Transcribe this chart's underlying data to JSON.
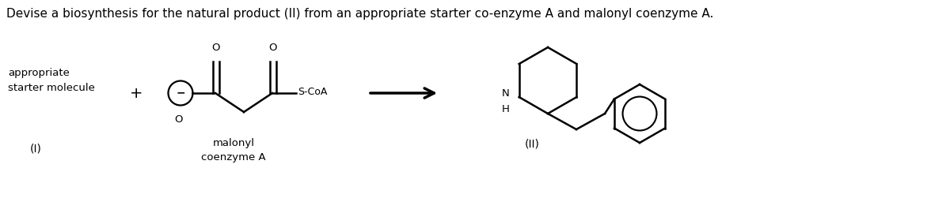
{
  "title_text": "Devise a biosynthesis for the natural product (II) from an appropriate starter co-enzyme A and malonyl coenzyme A.",
  "title_fontsize": 11,
  "bg_color": "#ffffff",
  "label_I": "(I)",
  "label_II": "(II)",
  "label_appropriate": "appropriate\nstarter molecule",
  "label_malonyl": "malonyl\ncoenzyme A",
  "plus_sign": "+",
  "line_color": "#000000",
  "line_width": 1.8,
  "figsize": [
    12.0,
    2.7
  ],
  "dpi": 100
}
